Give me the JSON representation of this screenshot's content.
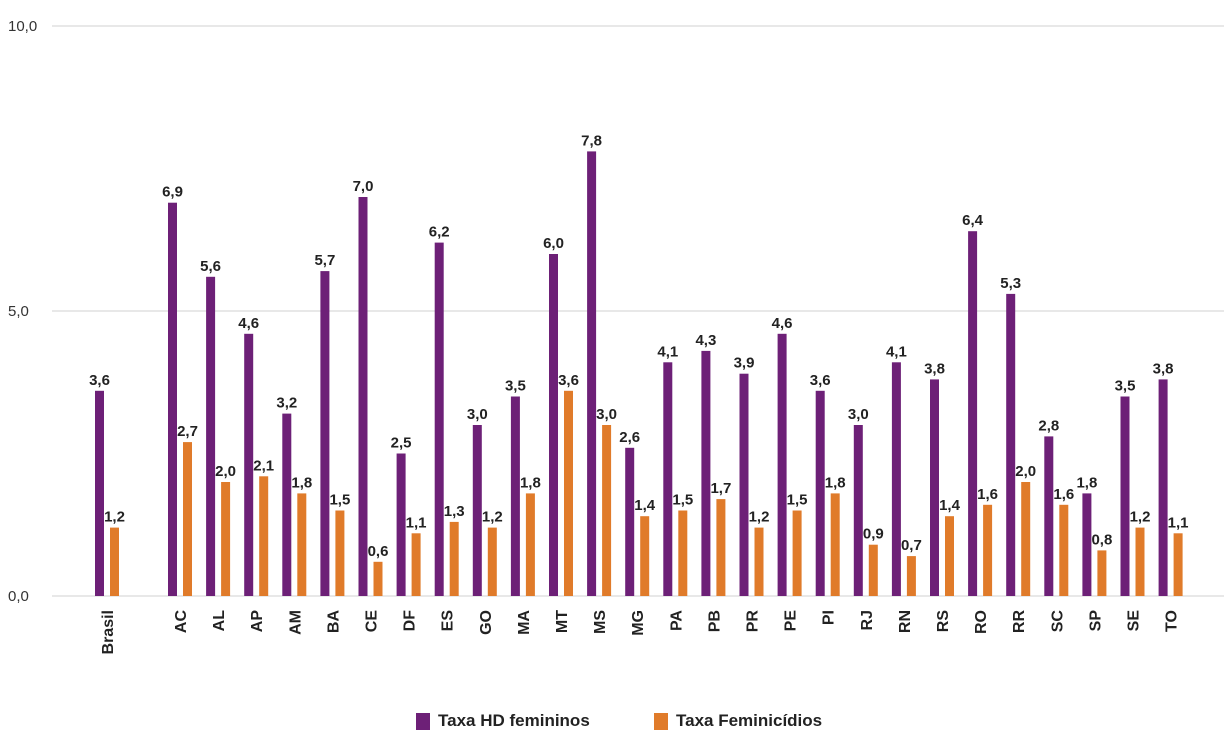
{
  "chart_data": {
    "type": "bar",
    "categories": [
      "Brasil",
      "AC",
      "AL",
      "AP",
      "AM",
      "BA",
      "CE",
      "DF",
      "ES",
      "GO",
      "MA",
      "MT",
      "MS",
      "MG",
      "PA",
      "PB",
      "PR",
      "PE",
      "PI",
      "RJ",
      "RN",
      "RS",
      "RO",
      "RR",
      "SC",
      "SP",
      "SE",
      "TO"
    ],
    "series": [
      {
        "name": "Taxa HD femininos",
        "values": [
          3.6,
          6.9,
          5.6,
          4.6,
          3.2,
          5.7,
          7.0,
          2.5,
          6.2,
          3.0,
          3.5,
          6.0,
          7.8,
          2.6,
          4.1,
          4.3,
          3.9,
          4.6,
          3.6,
          3.0,
          4.1,
          3.8,
          6.4,
          5.3,
          2.8,
          1.8,
          3.5,
          3.8
        ],
        "labels": [
          "3,6",
          "6,9",
          "5,6",
          "4,6",
          "3,2",
          "5,7",
          "7,0",
          "2,5",
          "6,2",
          "3,0",
          "3,5",
          "6,0",
          "7,8",
          "2,6",
          "4,1",
          "4,3",
          "3,9",
          "4,6",
          "3,6",
          "3,0",
          "4,1",
          "3,8",
          "6,4",
          "5,3",
          "2,8",
          "1,8",
          "3,5",
          "3,8"
        ],
        "color": "#6d2077"
      },
      {
        "name": "Taxa Feminicídios",
        "values": [
          1.2,
          2.7,
          2.0,
          2.1,
          1.8,
          1.5,
          0.6,
          1.1,
          1.3,
          1.2,
          1.8,
          3.6,
          3.0,
          1.4,
          1.5,
          1.7,
          1.2,
          1.5,
          1.8,
          0.9,
          0.7,
          1.4,
          1.6,
          2.0,
          1.6,
          0.8,
          1.2,
          1.1
        ],
        "labels": [
          "1,2",
          "2,7",
          "2,0",
          "2,1",
          "1,8",
          "1,5",
          "0,6",
          "1,1",
          "1,3",
          "1,2",
          "1,8",
          "3,6",
          "3,0",
          "1,4",
          "1,5",
          "1,7",
          "1,2",
          "1,5",
          "1,8",
          "0,9",
          "0,7",
          "1,4",
          "1,6",
          "2,0",
          "1,6",
          "0,8",
          "1,2",
          "1,1"
        ],
        "color": "#e07b2a"
      }
    ],
    "yticks": [
      "0,0",
      "5,0",
      "10,0"
    ],
    "ytick_values": [
      0,
      5,
      10
    ],
    "ylim": [
      0,
      10
    ],
    "grid": true,
    "legend_position": "bottom-center"
  }
}
